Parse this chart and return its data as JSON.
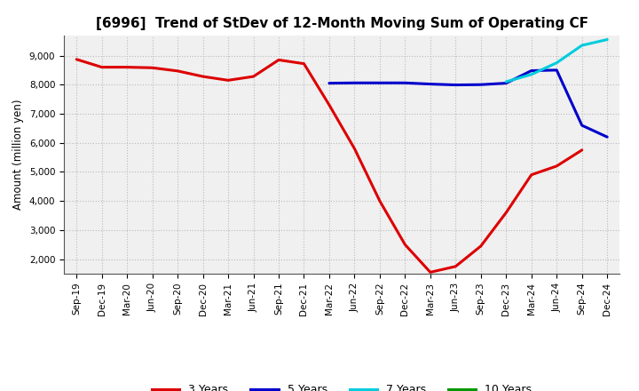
{
  "title": "[6996]  Trend of StDev of 12-Month Moving Sum of Operating CF",
  "ylabel": "Amount (million yen)",
  "background_color": "#ffffff",
  "plot_bg_color": "#f0f0f0",
  "grid_color": "#bbbbbb",
  "ylim": [
    1500,
    9700
  ],
  "yticks": [
    2000,
    3000,
    4000,
    5000,
    6000,
    7000,
    8000,
    9000
  ],
  "all_dates": [
    "Sep-19",
    "Dec-19",
    "Mar-20",
    "Jun-20",
    "Sep-20",
    "Dec-20",
    "Mar-21",
    "Jun-21",
    "Sep-21",
    "Dec-21",
    "Mar-22",
    "Jun-22",
    "Sep-22",
    "Dec-22",
    "Mar-23",
    "Jun-23",
    "Sep-23",
    "Dec-23",
    "Mar-24",
    "Jun-24",
    "Sep-24",
    "Dec-24"
  ],
  "series": {
    "3 Years": {
      "color": "#dd0000",
      "data": {
        "Sep-19": 8870,
        "Dec-19": 8600,
        "Mar-20": 8600,
        "Jun-20": 8580,
        "Sep-20": 8470,
        "Dec-20": 8280,
        "Mar-21": 8150,
        "Jun-21": 8280,
        "Sep-21": 8850,
        "Dec-21": 8720,
        "Mar-22": 7300,
        "Jun-22": 5800,
        "Sep-22": 4000,
        "Dec-22": 2500,
        "Mar-23": 1550,
        "Jun-23": 1750,
        "Sep-23": 2450,
        "Dec-23": 3600,
        "Mar-24": 4900,
        "Jun-24": 5200,
        "Sep-24": 5750
      }
    },
    "5 Years": {
      "color": "#0000cc",
      "data": {
        "Mar-22": 8050,
        "Jun-22": 8060,
        "Sep-22": 8060,
        "Dec-22": 8060,
        "Mar-23": 8020,
        "Jun-23": 7990,
        "Sep-23": 8000,
        "Dec-23": 8050,
        "Mar-24": 8480,
        "Jun-24": 8500,
        "Sep-24": 6600,
        "Dec-24": 6200
      }
    },
    "7 Years": {
      "color": "#00ccdd",
      "data": {
        "Dec-23": 8100,
        "Mar-24": 8350,
        "Jun-24": 8750,
        "Sep-24": 9350,
        "Dec-24": 9550
      }
    },
    "10 Years": {
      "color": "#009900",
      "data": {}
    }
  },
  "legend_colors": {
    "3 Years": "#dd0000",
    "5 Years": "#0000cc",
    "7 Years": "#00ccdd",
    "10 Years": "#009900"
  },
  "title_fontsize": 11,
  "label_fontsize": 8.5,
  "tick_fontsize": 7.5,
  "legend_fontsize": 9,
  "linewidth": 2.2
}
